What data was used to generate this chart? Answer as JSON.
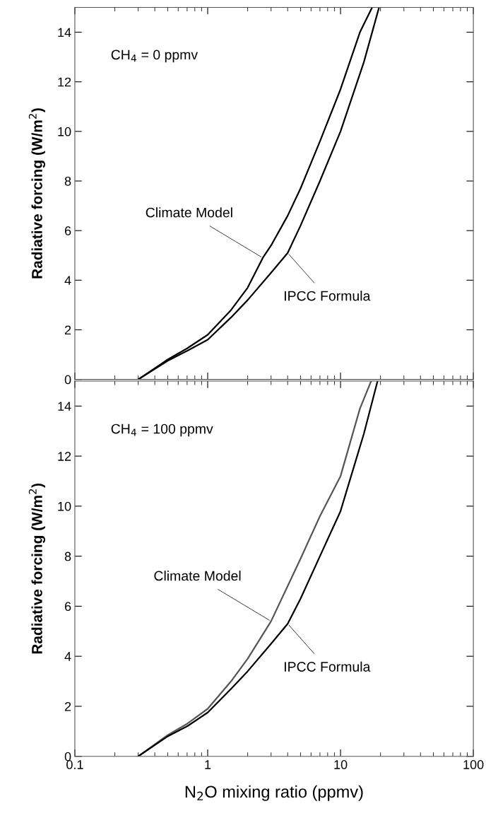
{
  "chart_data": [
    {
      "type": "line",
      "ylabel": "Radiative forcing (W/m$^{2}$)",
      "log": "x",
      "xlim": [
        0.1,
        100
      ],
      "xticks": [
        {
          "value": 0.1,
          "label": null
        },
        {
          "value": 1,
          "label": null
        },
        {
          "value": 10,
          "label": null
        },
        {
          "value": 100,
          "label": null
        }
      ],
      "ylim": [
        0,
        15
      ],
      "yticks": [
        0,
        2,
        4,
        6,
        8,
        10,
        12,
        14
      ],
      "tick_labels": "y",
      "grid": false,
      "legend": false,
      "series": [
        {
          "color": "#000000",
          "x": [
            0.3,
            0.5,
            0.7,
            1,
            1.5,
            2,
            2.6,
            3,
            4,
            5,
            7,
            10,
            14,
            17.3
          ],
          "values": [
            0,
            0.8,
            1.25,
            1.8,
            2.8,
            3.7,
            4.9,
            5.4,
            6.6,
            7.7,
            9.6,
            11.7,
            14,
            15
          ]
        },
        {
          "color": "#000000",
          "x": [
            0.3,
            0.5,
            0.7,
            1,
            1.5,
            2,
            3,
            4,
            5,
            7,
            10,
            15,
            19.5
          ],
          "values": [
            0,
            0.75,
            1.15,
            1.6,
            2.5,
            3.2,
            4.3,
            5.1,
            6.2,
            8.0,
            10,
            12.8,
            15
          ]
        }
      ],
      "annotations": [
        "CH$_{4}$ = 0 ppmv",
        {
          "text": "Climate Model",
          "x": 2.6,
          "y": 4.9
        },
        {
          "text": "IPCC Formula",
          "x": 4,
          "y": 5.1
        }
      ]
    },
    {
      "type": "line",
      "ylabel": "Radiative forcing (W/m$^{2}$)",
      "xlabel": "N$_{2}$O mixing ratio (ppmv)",
      "log": "x",
      "xlim": [
        0.1,
        100
      ],
      "xticks": [
        0.1,
        1,
        10,
        100
      ],
      "ylim": [
        0,
        15
      ],
      "yticks": [
        0,
        2,
        4,
        6,
        8,
        10,
        12,
        14
      ],
      "grid": false,
      "legend": false,
      "series": [
        {
          "color": "#555555",
          "x": [
            0.3,
            0.5,
            0.7,
            1,
            1.5,
            2,
            3,
            5,
            7,
            10,
            14,
            17
          ],
          "values": [
            0,
            0.85,
            1.3,
            1.9,
            3.0,
            3.9,
            5.4,
            7.9,
            9.6,
            11.2,
            13.9,
            15
          ]
        },
        {
          "color": "#000000",
          "x": [
            0.3,
            0.5,
            0.7,
            1,
            1.5,
            2,
            3,
            4,
            5,
            7,
            10,
            15,
            19
          ],
          "values": [
            0,
            0.8,
            1.2,
            1.75,
            2.7,
            3.4,
            4.5,
            5.3,
            6.3,
            8.0,
            9.8,
            12.9,
            15
          ]
        }
      ],
      "annotations": [
        "CH$_{4}$ = 100 ppmv",
        {
          "text": "Climate Model",
          "x": 3,
          "y": 5.4
        },
        {
          "text": "IPCC Formula",
          "x": 4,
          "y": 5.3
        }
      ]
    }
  ]
}
